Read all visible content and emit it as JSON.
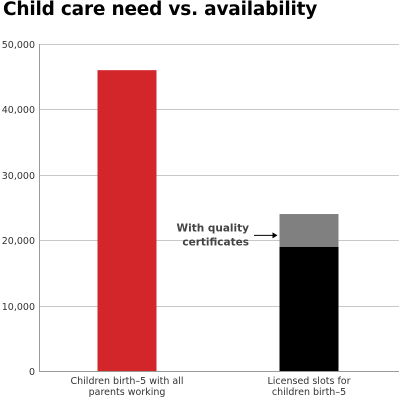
{
  "chart_data": {
    "type": "bar",
    "title": "Child care need vs. availability",
    "xlabel": "",
    "ylabel": "",
    "ylim": [
      0,
      50000
    ],
    "yticks": [
      0,
      10000,
      20000,
      30000,
      40000,
      50000
    ],
    "ytick_labels": [
      "0",
      "10,000",
      "20,000",
      "30,000",
      "40,000",
      "50,000"
    ],
    "grid": true,
    "stacked": true,
    "categories": [
      [
        "Children birth–5 with all",
        "parents working"
      ],
      [
        "Licensed slots for",
        "children birth–5"
      ]
    ],
    "bars": [
      {
        "segments": [
          {
            "value": 46000,
            "color": "#d2262b"
          }
        ]
      },
      {
        "segments": [
          {
            "value": 19000,
            "color": "#000000"
          },
          {
            "value": 5000,
            "color": "#808080",
            "label": "With quality certificates"
          }
        ]
      }
    ],
    "annotation": {
      "lines": [
        "With quality",
        "certificates"
      ],
      "points_to_bar": 1,
      "points_to_segment": 1
    }
  }
}
